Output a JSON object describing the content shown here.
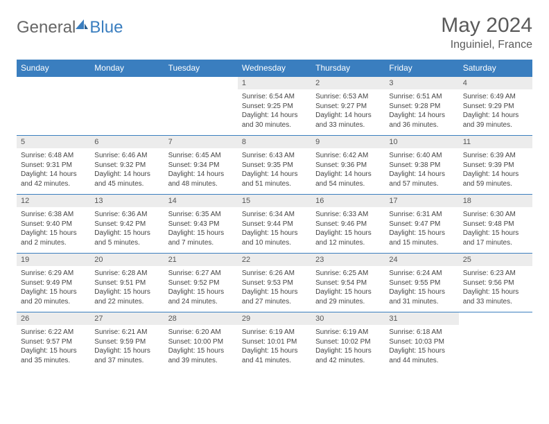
{
  "brand": {
    "part1": "General",
    "part2": "Blue"
  },
  "title": "May 2024",
  "location": "Inguiniel, France",
  "colors": {
    "header_bg": "#3a7ebf",
    "header_text": "#ffffff",
    "daynum_bg": "#ececec",
    "border": "#3a7ebf",
    "body_text": "#444444",
    "title_text": "#5a5a5a"
  },
  "dayNames": [
    "Sunday",
    "Monday",
    "Tuesday",
    "Wednesday",
    "Thursday",
    "Friday",
    "Saturday"
  ],
  "weeks": [
    {
      "nums": [
        "",
        "",
        "",
        "1",
        "2",
        "3",
        "4"
      ],
      "details": [
        null,
        null,
        null,
        {
          "sunrise": "Sunrise: 6:54 AM",
          "sunset": "Sunset: 9:25 PM",
          "day1": "Daylight: 14 hours",
          "day2": "and 30 minutes."
        },
        {
          "sunrise": "Sunrise: 6:53 AM",
          "sunset": "Sunset: 9:27 PM",
          "day1": "Daylight: 14 hours",
          "day2": "and 33 minutes."
        },
        {
          "sunrise": "Sunrise: 6:51 AM",
          "sunset": "Sunset: 9:28 PM",
          "day1": "Daylight: 14 hours",
          "day2": "and 36 minutes."
        },
        {
          "sunrise": "Sunrise: 6:49 AM",
          "sunset": "Sunset: 9:29 PM",
          "day1": "Daylight: 14 hours",
          "day2": "and 39 minutes."
        }
      ]
    },
    {
      "nums": [
        "5",
        "6",
        "7",
        "8",
        "9",
        "10",
        "11"
      ],
      "details": [
        {
          "sunrise": "Sunrise: 6:48 AM",
          "sunset": "Sunset: 9:31 PM",
          "day1": "Daylight: 14 hours",
          "day2": "and 42 minutes."
        },
        {
          "sunrise": "Sunrise: 6:46 AM",
          "sunset": "Sunset: 9:32 PM",
          "day1": "Daylight: 14 hours",
          "day2": "and 45 minutes."
        },
        {
          "sunrise": "Sunrise: 6:45 AM",
          "sunset": "Sunset: 9:34 PM",
          "day1": "Daylight: 14 hours",
          "day2": "and 48 minutes."
        },
        {
          "sunrise": "Sunrise: 6:43 AM",
          "sunset": "Sunset: 9:35 PM",
          "day1": "Daylight: 14 hours",
          "day2": "and 51 minutes."
        },
        {
          "sunrise": "Sunrise: 6:42 AM",
          "sunset": "Sunset: 9:36 PM",
          "day1": "Daylight: 14 hours",
          "day2": "and 54 minutes."
        },
        {
          "sunrise": "Sunrise: 6:40 AM",
          "sunset": "Sunset: 9:38 PM",
          "day1": "Daylight: 14 hours",
          "day2": "and 57 minutes."
        },
        {
          "sunrise": "Sunrise: 6:39 AM",
          "sunset": "Sunset: 9:39 PM",
          "day1": "Daylight: 14 hours",
          "day2": "and 59 minutes."
        }
      ]
    },
    {
      "nums": [
        "12",
        "13",
        "14",
        "15",
        "16",
        "17",
        "18"
      ],
      "details": [
        {
          "sunrise": "Sunrise: 6:38 AM",
          "sunset": "Sunset: 9:40 PM",
          "day1": "Daylight: 15 hours",
          "day2": "and 2 minutes."
        },
        {
          "sunrise": "Sunrise: 6:36 AM",
          "sunset": "Sunset: 9:42 PM",
          "day1": "Daylight: 15 hours",
          "day2": "and 5 minutes."
        },
        {
          "sunrise": "Sunrise: 6:35 AM",
          "sunset": "Sunset: 9:43 PM",
          "day1": "Daylight: 15 hours",
          "day2": "and 7 minutes."
        },
        {
          "sunrise": "Sunrise: 6:34 AM",
          "sunset": "Sunset: 9:44 PM",
          "day1": "Daylight: 15 hours",
          "day2": "and 10 minutes."
        },
        {
          "sunrise": "Sunrise: 6:33 AM",
          "sunset": "Sunset: 9:46 PM",
          "day1": "Daylight: 15 hours",
          "day2": "and 12 minutes."
        },
        {
          "sunrise": "Sunrise: 6:31 AM",
          "sunset": "Sunset: 9:47 PM",
          "day1": "Daylight: 15 hours",
          "day2": "and 15 minutes."
        },
        {
          "sunrise": "Sunrise: 6:30 AM",
          "sunset": "Sunset: 9:48 PM",
          "day1": "Daylight: 15 hours",
          "day2": "and 17 minutes."
        }
      ]
    },
    {
      "nums": [
        "19",
        "20",
        "21",
        "22",
        "23",
        "24",
        "25"
      ],
      "details": [
        {
          "sunrise": "Sunrise: 6:29 AM",
          "sunset": "Sunset: 9:49 PM",
          "day1": "Daylight: 15 hours",
          "day2": "and 20 minutes."
        },
        {
          "sunrise": "Sunrise: 6:28 AM",
          "sunset": "Sunset: 9:51 PM",
          "day1": "Daylight: 15 hours",
          "day2": "and 22 minutes."
        },
        {
          "sunrise": "Sunrise: 6:27 AM",
          "sunset": "Sunset: 9:52 PM",
          "day1": "Daylight: 15 hours",
          "day2": "and 24 minutes."
        },
        {
          "sunrise": "Sunrise: 6:26 AM",
          "sunset": "Sunset: 9:53 PM",
          "day1": "Daylight: 15 hours",
          "day2": "and 27 minutes."
        },
        {
          "sunrise": "Sunrise: 6:25 AM",
          "sunset": "Sunset: 9:54 PM",
          "day1": "Daylight: 15 hours",
          "day2": "and 29 minutes."
        },
        {
          "sunrise": "Sunrise: 6:24 AM",
          "sunset": "Sunset: 9:55 PM",
          "day1": "Daylight: 15 hours",
          "day2": "and 31 minutes."
        },
        {
          "sunrise": "Sunrise: 6:23 AM",
          "sunset": "Sunset: 9:56 PM",
          "day1": "Daylight: 15 hours",
          "day2": "and 33 minutes."
        }
      ]
    },
    {
      "nums": [
        "26",
        "27",
        "28",
        "29",
        "30",
        "31",
        ""
      ],
      "details": [
        {
          "sunrise": "Sunrise: 6:22 AM",
          "sunset": "Sunset: 9:57 PM",
          "day1": "Daylight: 15 hours",
          "day2": "and 35 minutes."
        },
        {
          "sunrise": "Sunrise: 6:21 AM",
          "sunset": "Sunset: 9:59 PM",
          "day1": "Daylight: 15 hours",
          "day2": "and 37 minutes."
        },
        {
          "sunrise": "Sunrise: 6:20 AM",
          "sunset": "Sunset: 10:00 PM",
          "day1": "Daylight: 15 hours",
          "day2": "and 39 minutes."
        },
        {
          "sunrise": "Sunrise: 6:19 AM",
          "sunset": "Sunset: 10:01 PM",
          "day1": "Daylight: 15 hours",
          "day2": "and 41 minutes."
        },
        {
          "sunrise": "Sunrise: 6:19 AM",
          "sunset": "Sunset: 10:02 PM",
          "day1": "Daylight: 15 hours",
          "day2": "and 42 minutes."
        },
        {
          "sunrise": "Sunrise: 6:18 AM",
          "sunset": "Sunset: 10:03 PM",
          "day1": "Daylight: 15 hours",
          "day2": "and 44 minutes."
        },
        null
      ]
    }
  ]
}
